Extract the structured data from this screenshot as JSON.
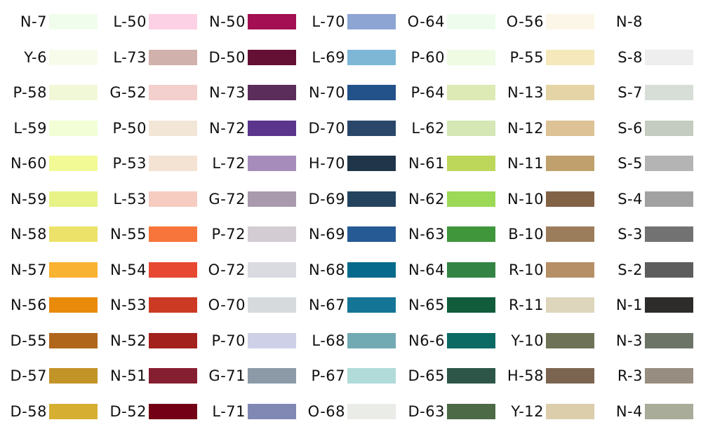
{
  "columns": [
    [
      {
        "code": "N-7",
        "color": "#f1fdec"
      },
      {
        "code": "Y-6",
        "color": "#f7fbea"
      },
      {
        "code": "P-58",
        "color": "#f1f8d8"
      },
      {
        "code": "L-59",
        "color": "#f2ffd6"
      },
      {
        "code": "N-60",
        "color": "#f2fa96"
      },
      {
        "code": "N-59",
        "color": "#e7f387"
      },
      {
        "code": "N-58",
        "color": "#ece26a"
      },
      {
        "code": "N-57",
        "color": "#fab232"
      },
      {
        "code": "N-56",
        "color": "#ea8a0a"
      },
      {
        "code": "D-55",
        "color": "#b0661b"
      },
      {
        "code": "D-57",
        "color": "#c29427"
      },
      {
        "code": "D-58",
        "color": "#d6af32"
      }
    ],
    [
      {
        "code": "L-50",
        "color": "#fdd1e5"
      },
      {
        "code": "L-73",
        "color": "#d1b1ab"
      },
      {
        "code": "G-52",
        "color": "#f3d0cd"
      },
      {
        "code": "P-50",
        "color": "#f2e6d7"
      },
      {
        "code": "P-53",
        "color": "#f4e2d3"
      },
      {
        "code": "L-53",
        "color": "#f6cbc0"
      },
      {
        "code": "N-55",
        "color": "#f7753a"
      },
      {
        "code": "N-54",
        "color": "#e64832"
      },
      {
        "code": "N-53",
        "color": "#cc3a24"
      },
      {
        "code": "N-52",
        "color": "#a3221b"
      },
      {
        "code": "N-51",
        "color": "#861e32"
      },
      {
        "code": "D-52",
        "color": "#730015"
      }
    ],
    [
      {
        "code": "N-50",
        "color": "#a30f52"
      },
      {
        "code": "D-50",
        "color": "#640f34"
      },
      {
        "code": "N-73",
        "color": "#5b2d5b"
      },
      {
        "code": "N-72",
        "color": "#5b358c"
      },
      {
        "code": "L-72",
        "color": "#a68cbb"
      },
      {
        "code": "G-72",
        "color": "#a99aae"
      },
      {
        "code": "P-72",
        "color": "#d3cdd3"
      },
      {
        "code": "O-72",
        "color": "#dadbe1"
      },
      {
        "code": "O-70",
        "color": "#d6dadd"
      },
      {
        "code": "P-70",
        "color": "#ced0e8"
      },
      {
        "code": "G-71",
        "color": "#8c9aa8"
      },
      {
        "code": "L-71",
        "color": "#8188b4"
      }
    ],
    [
      {
        "code": "L-70",
        "color": "#8ca5d3"
      },
      {
        "code": "L-69",
        "color": "#7db7d5"
      },
      {
        "code": "N-70",
        "color": "#235189"
      },
      {
        "code": "D-70",
        "color": "#2a4769"
      },
      {
        "code": "H-70",
        "color": "#203549"
      },
      {
        "code": "D-69",
        "color": "#24435f"
      },
      {
        "code": "N-69",
        "color": "#255a95"
      },
      {
        "code": "N-68",
        "color": "#056a8b"
      },
      {
        "code": "N-67",
        "color": "#147596"
      },
      {
        "code": "L-68",
        "color": "#72aab4"
      },
      {
        "code": "P-67",
        "color": "#b1dbd8"
      },
      {
        "code": "O-68",
        "color": "#eaece7"
      }
    ],
    [
      {
        "code": "O-64",
        "color": "#eefcee"
      },
      {
        "code": "P-60",
        "color": "#effbe2"
      },
      {
        "code": "P-64",
        "color": "#ddeab5"
      },
      {
        "code": "L-62",
        "color": "#d4e7b5"
      },
      {
        "code": "N-61",
        "color": "#bdd75a"
      },
      {
        "code": "N-62",
        "color": "#9bd957"
      },
      {
        "code": "N-63",
        "color": "#3f963b"
      },
      {
        "code": "N-64",
        "color": "#338444"
      },
      {
        "code": "N-65",
        "color": "#105c3b"
      },
      {
        "code": "N6-6",
        "color": "#0b6a64"
      },
      {
        "code": "D-65",
        "color": "#2d5648"
      },
      {
        "code": "D-63",
        "color": "#4b6a45"
      }
    ],
    [
      {
        "code": "O-56",
        "color": "#fbf6e7"
      },
      {
        "code": "P-55",
        "color": "#f5e9bb"
      },
      {
        "code": "N-13",
        "color": "#e5d5a6"
      },
      {
        "code": "N-12",
        "color": "#dcc295"
      },
      {
        "code": "N-11",
        "color": "#c0a06c"
      },
      {
        "code": "N-10",
        "color": "#836346"
      },
      {
        "code": "B-10",
        "color": "#9c7d5b"
      },
      {
        "code": "R-10",
        "color": "#b78f67"
      },
      {
        "code": "R-11",
        "color": "#ddd6bc"
      },
      {
        "code": "Y-10",
        "color": "#6e7256"
      },
      {
        "code": "H-58",
        "color": "#7b6551"
      },
      {
        "code": "Y-12",
        "color": "#dccdab"
      }
    ],
    [
      {
        "code": "N-8",
        "color": "#ffffff"
      },
      {
        "code": "S-8",
        "color": "#eeeeee"
      },
      {
        "code": "S-7",
        "color": "#d7ddd7"
      },
      {
        "code": "S-6",
        "color": "#c4cbc0"
      },
      {
        "code": "S-5",
        "color": "#b4b4b4"
      },
      {
        "code": "S-4",
        "color": "#a1a1a1"
      },
      {
        "code": "S-3",
        "color": "#727272"
      },
      {
        "code": "S-2",
        "color": "#5d5d5d"
      },
      {
        "code": "N-1",
        "color": "#2e2c2a"
      },
      {
        "code": "N-3",
        "color": "#6c7468"
      },
      {
        "code": "R-3",
        "color": "#978d80"
      },
      {
        "code": "N-4",
        "color": "#a9ac98"
      }
    ]
  ]
}
